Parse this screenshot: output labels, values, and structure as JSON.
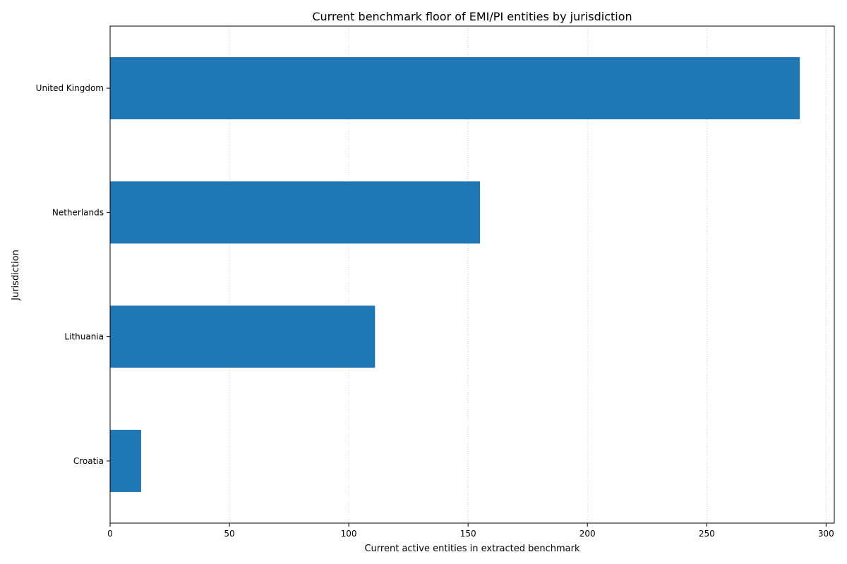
{
  "chart_data": {
    "type": "bar",
    "orientation": "horizontal",
    "title": "Current benchmark floor of EMI/PI entities by jurisdiction",
    "xlabel": "Current active entities in extracted benchmark",
    "ylabel": "Jurisdiction",
    "categories": [
      "Croatia",
      "Lithuania",
      "Netherlands",
      "United Kingdom"
    ],
    "values": [
      13,
      111,
      155,
      289
    ],
    "xlim": [
      0,
      303.45
    ],
    "xticks": [
      0,
      50,
      100,
      150,
      200,
      250,
      300
    ],
    "grid": "x, dotted",
    "bar_color": "#1f77b4"
  }
}
